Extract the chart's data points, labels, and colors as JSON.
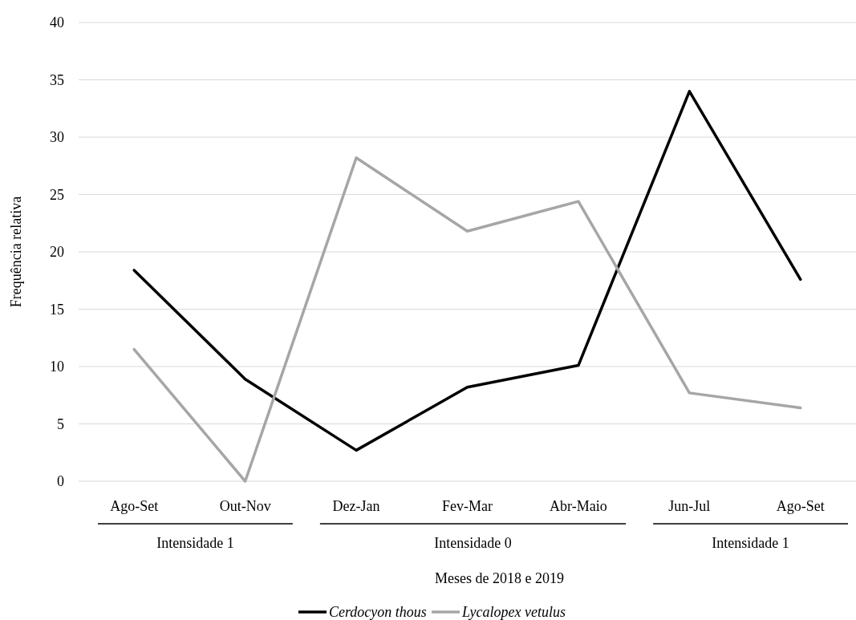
{
  "chart_data": {
    "type": "line",
    "xlabel": "Meses de 2018 e 2019",
    "ylabel": "Frequência relativa",
    "categories": [
      "Ago-Set",
      "Out-Nov",
      "Dez-Jan",
      "Fev-Mar",
      "Abr-Maio",
      "Jun-Jul",
      "Ago-Set"
    ],
    "series": [
      {
        "name": "Cerdocyon thous",
        "color": "#000000",
        "values": [
          18.4,
          8.9,
          2.7,
          8.2,
          10.1,
          34,
          17.6
        ]
      },
      {
        "name": "Lycalopex vetulus",
        "color": "#a6a6a6",
        "values": [
          11.5,
          0,
          28.2,
          21.8,
          24.4,
          7.7,
          6.4
        ]
      }
    ],
    "ylim": [
      0,
      40
    ],
    "yticks": [
      0,
      5,
      10,
      15,
      20,
      25,
      30,
      35,
      40
    ],
    "grid": "y",
    "legend": "bottom",
    "marker": "none",
    "line_style": "solid",
    "annotations": [
      "Intensidade 1",
      "Intensidade 0",
      "Intensidade 1"
    ]
  }
}
